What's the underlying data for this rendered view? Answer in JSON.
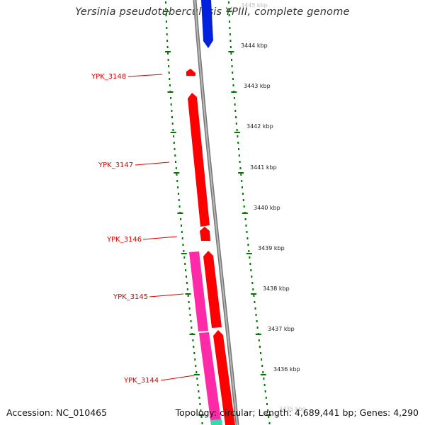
{
  "title": "Yersinia pseudotuberculosis YPIII, complete genome",
  "footer": {
    "accession": "Accession: NC_010465",
    "summary": "Topology: circular; Length: 4,689,441 bp; Genes: 4,290"
  },
  "colors": {
    "forward_gene": "#ff0000",
    "reverse_gene": "#0022dd",
    "cds_pink": "#ff2aa8",
    "cds_teal": "#33ddaa",
    "backbone": "#888888",
    "ticks": "#007700",
    "labels": "#dd0000"
  },
  "scale_labels": [
    "3445 kbp",
    "3444 kbp",
    "3443 kbp",
    "3442 kbp",
    "3441 kbp",
    "3440 kbp",
    "3439 kbp",
    "3438 kbp",
    "3437 kbp",
    "3436 kbp",
    "3435 kbp"
  ],
  "gene_labels": [
    "YPK_3148",
    "YPK_3147",
    "YPK_3146",
    "YPK_3145",
    "YPK_3144"
  ]
}
